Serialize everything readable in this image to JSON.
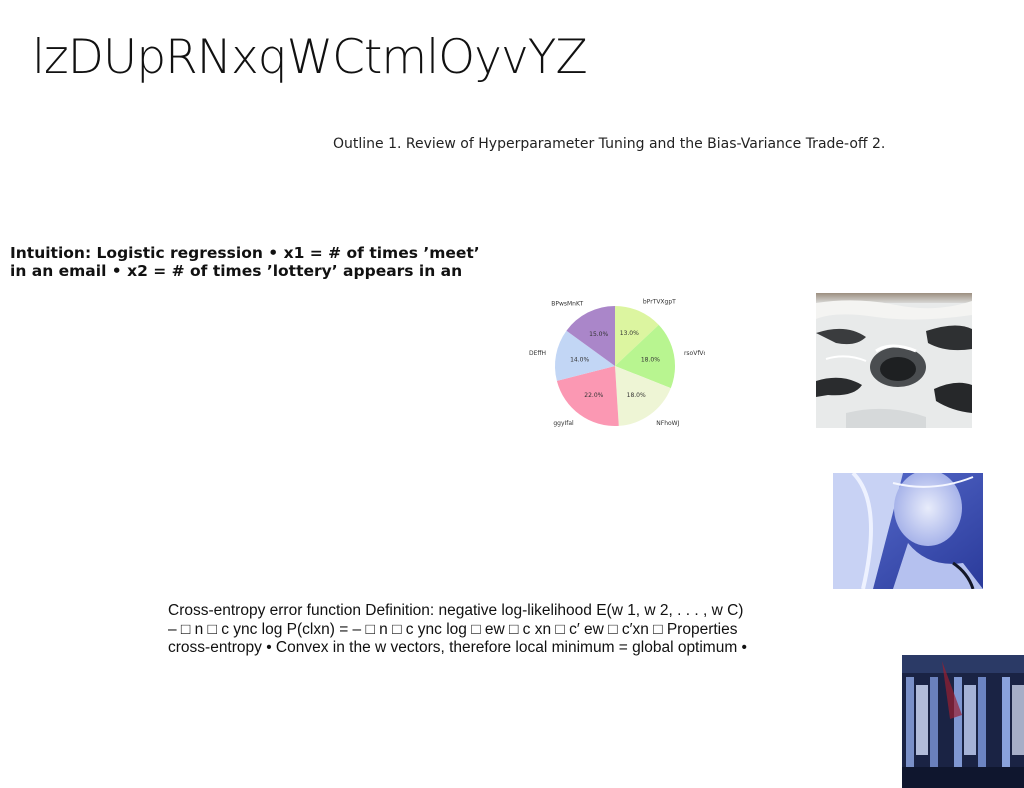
{
  "title": "lzDUpRNxqWCtmlOyvYZ",
  "outline_text": "Outline 1. Review of Hyperparameter Tuning and the Bias-Variance Trade-off 2.",
  "intuition": {
    "line1": "Intuition: Logistic regression • x1 = # of times ’meet’",
    "line2": "in an email • x2 = # of times ’lottery’ appears in an"
  },
  "cross_entropy": {
    "line1": "Cross-entropy error function Definition: negative log-likelihood E(w 1, w 2, . . . , w C)",
    "line2": "– □ n □ c ync log P(clxn) = – □ n □ c ync log □ ew □ c xn □ c′ ew □ c′xn □ Properties",
    "line3": "cross-entropy • Convex in the w vectors, therefore local minimum = global optimum •"
  },
  "chart_data": {
    "type": "pie",
    "title": "",
    "slices": [
      {
        "label": "bPrTVXgpT",
        "value": 13.0,
        "pct_label": "13.0%",
        "color": "#dcf5a0"
      },
      {
        "label": "rsoVfVdnc",
        "value": 18.0,
        "pct_label": "18.0%",
        "color": "#b8f590"
      },
      {
        "label": "NFhoWJ",
        "value": 18.0,
        "pct_label": "18.0%",
        "color": "#eef5d5"
      },
      {
        "label": "ggyIfal",
        "value": 22.0,
        "pct_label": "22.0%",
        "color": "#fb98b3"
      },
      {
        "label": "DEffH",
        "value": 14.0,
        "pct_label": "14.0%",
        "color": "#c2d6f5"
      },
      {
        "label": "BPwsMnKT",
        "value": 15.0,
        "pct_label": "15.0%",
        "color": "#aa86c9"
      }
    ],
    "start_angle_deg": 90,
    "direction": "clockwise"
  }
}
